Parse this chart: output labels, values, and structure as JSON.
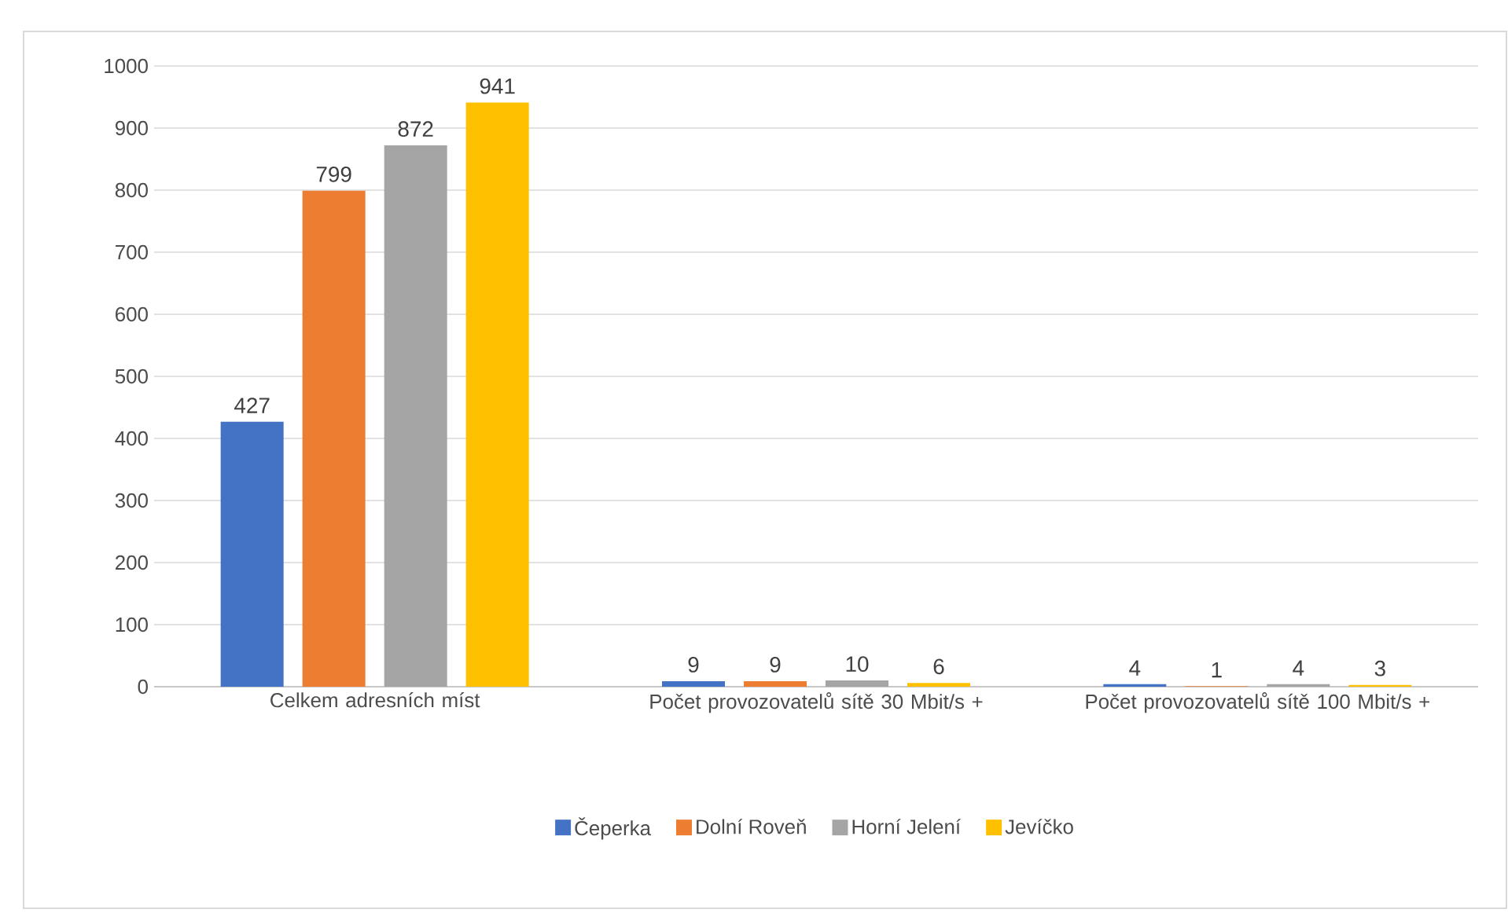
{
  "chart_data": {
    "type": "bar",
    "categories": [
      "Celkem adresních míst",
      "Počet provozovatelů sítě 30 Mbit/s +",
      "Počet provozovatelů sítě 100 Mbit/s +"
    ],
    "series": [
      {
        "name": "Čeperka",
        "color": "#4472c4",
        "values": [
          427,
          9,
          4
        ]
      },
      {
        "name": "Dolní Roveň",
        "color": "#ed7d31",
        "values": [
          799,
          9,
          1
        ]
      },
      {
        "name": "Horní Jelení",
        "color": "#a5a5a5",
        "values": [
          872,
          10,
          4
        ]
      },
      {
        "name": "Jevíčko",
        "color": "#ffc000",
        "values": [
          941,
          6,
          3
        ]
      }
    ],
    "ylim": [
      0,
      1000
    ],
    "yticks": [
      0,
      100,
      200,
      300,
      400,
      500,
      600,
      700,
      800,
      900,
      1000
    ],
    "grid": "y",
    "legend": "bottom",
    "data_labels": true
  }
}
